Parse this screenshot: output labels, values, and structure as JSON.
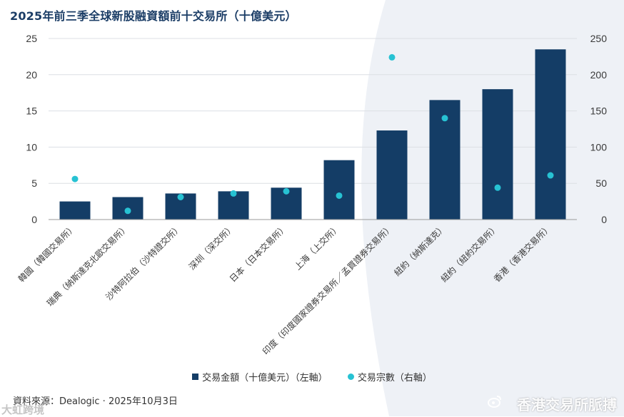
{
  "title": "2025年前三季全球新股融資額前十交易所（十億美元）",
  "colors": {
    "bar": "#143d66",
    "dot": "#27c2d3",
    "title": "#1b3d66",
    "background_shape": "#eef1f6"
  },
  "legend": {
    "bar_label": "交易金額（十億美元）（左軸）",
    "dot_label": "交易宗數（右軸）"
  },
  "source": "資料來源：Dealogic · 2025年10月3日",
  "watermarks": {
    "left": "大虹跨境",
    "right": "香港交易所脈搏",
    "right_icon": "weibo-icon"
  },
  "chart_data": {
    "type": "bar",
    "title": "2025年前三季全球新股融資額前十交易所（十億美元）",
    "categories": [
      "韓國（韓國交易所）",
      "瑞典（納斯達克北歐交易所）",
      "沙特阿拉伯（沙特證交所）",
      "深圳（深交所）",
      "日本（日本交易所）",
      "上海（上交所）",
      "印度（印度國家證券交易所／孟買證券交易所）",
      "紐約（納斯達克）",
      "紐約（紐約交易所）",
      "香港（香港交易所）"
    ],
    "series": [
      {
        "name": "交易金額（十億美元）（左軸）",
        "type": "bar",
        "axis": "left",
        "values": [
          2.5,
          3.1,
          3.6,
          3.9,
          4.4,
          8.2,
          12.3,
          16.5,
          18.0,
          23.5
        ]
      },
      {
        "name": "交易宗數（右軸）",
        "type": "scatter",
        "axis": "right",
        "values": [
          56,
          12,
          31,
          36,
          39,
          33,
          224,
          140,
          44,
          61
        ]
      }
    ],
    "y_left": {
      "ylim": [
        0,
        25
      ],
      "ticks": [
        "0",
        "5",
        "10",
        "15",
        "20",
        "25"
      ]
    },
    "y_right": {
      "ylim": [
        0,
        250
      ],
      "ticks": [
        "0",
        "50",
        "100",
        "150",
        "200",
        "250"
      ]
    },
    "grid": true,
    "legend_position": "bottom"
  }
}
